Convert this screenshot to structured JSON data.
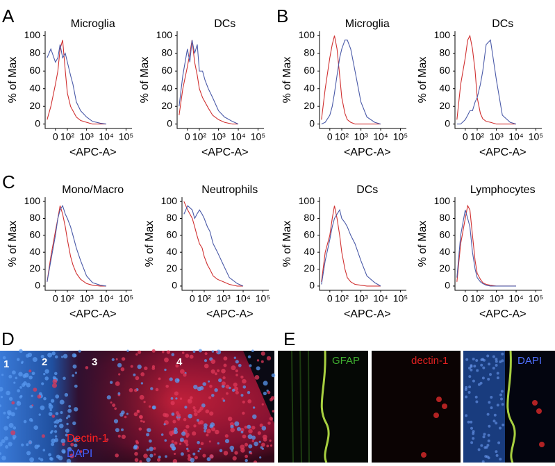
{
  "chart_data": [
    {
      "type": "line",
      "panel": "A",
      "title": "Microglia",
      "xlabel": "<APC-A>",
      "ylabel": "% of Max",
      "xscale": "symlog",
      "x": [
        -60,
        -30,
        0,
        15,
        30,
        50,
        75,
        100,
        150,
        200,
        300,
        500,
        1000,
        2000,
        5000,
        10000
      ],
      "xlim": [
        -80,
        200000
      ],
      "xticks": [
        0,
        {
          "value": 100,
          "label": "10²"
        },
        {
          "value": 1000,
          "label": "10³"
        },
        {
          "value": 10000,
          "label": "10⁴"
        },
        {
          "value": 100000,
          "label": "10⁵"
        }
      ],
      "ylim": [
        -5,
        105
      ],
      "yticks": [
        0,
        20,
        40,
        60,
        80,
        100
      ],
      "series": [
        {
          "color": "#d03030",
          "values": [
            5,
            20,
            45,
            60,
            85,
            95,
            60,
            35,
            20,
            15,
            8,
            4,
            2,
            0,
            0,
            0
          ]
        },
        {
          "color": "#4a5aa8",
          "values": [
            75,
            85,
            70,
            75,
            90,
            75,
            80,
            70,
            55,
            45,
            25,
            15,
            8,
            3,
            1,
            0
          ]
        }
      ]
    },
    {
      "type": "line",
      "title": "DCs",
      "xlabel": "<APC-A>",
      "ylabel": "% of Max",
      "xscale": "symlog",
      "x": [
        -60,
        -30,
        0,
        15,
        30,
        50,
        75,
        100,
        150,
        200,
        300,
        500,
        1000,
        2000,
        5000,
        10000
      ],
      "xlim": [
        -80,
        200000
      ],
      "xticks": [
        0,
        {
          "value": 100,
          "label": "10²"
        },
        {
          "value": 1000,
          "label": "10³"
        },
        {
          "value": 10000,
          "label": "10⁴"
        },
        {
          "value": 100000,
          "label": "10⁵"
        }
      ],
      "ylim": [
        -5,
        105
      ],
      "yticks": [
        0,
        20,
        40,
        60,
        80,
        100
      ],
      "series": [
        {
          "color": "#d03030",
          "values": [
            10,
            40,
            65,
            80,
            95,
            70,
            55,
            40,
            30,
            25,
            18,
            10,
            5,
            2,
            0,
            0
          ]
        },
        {
          "color": "#4a5aa8",
          "values": [
            20,
            55,
            85,
            70,
            95,
            80,
            90,
            60,
            60,
            50,
            40,
            30,
            15,
            8,
            3,
            0
          ]
        }
      ]
    },
    {
      "type": "line",
      "panel": "B",
      "title": "Microglia",
      "xlabel": "<APC-A>",
      "ylabel": "% of Max",
      "xscale": "symlog",
      "x": [
        -60,
        -30,
        0,
        15,
        30,
        50,
        75,
        100,
        150,
        200,
        300,
        500,
        1000,
        2000,
        5000,
        10000
      ],
      "xlim": [
        -80,
        200000
      ],
      "xticks": [
        0,
        {
          "value": 100,
          "label": "10²"
        },
        {
          "value": 1000,
          "label": "10³"
        },
        {
          "value": 10000,
          "label": "10⁴"
        },
        {
          "value": 100000,
          "label": "10⁵"
        }
      ],
      "ylim": [
        -5,
        105
      ],
      "yticks": [
        0,
        20,
        40,
        60,
        80,
        100
      ],
      "series": [
        {
          "color": "#d03030",
          "values": [
            5,
            40,
            75,
            90,
            100,
            85,
            55,
            30,
            12,
            5,
            2,
            0,
            0,
            0,
            0,
            0
          ]
        },
        {
          "color": "#4a5aa8",
          "values": [
            0,
            2,
            10,
            20,
            35,
            55,
            75,
            85,
            95,
            95,
            85,
            60,
            25,
            8,
            2,
            0
          ]
        }
      ]
    },
    {
      "type": "line",
      "title": "DCs",
      "xlabel": "<APC-A>",
      "ylabel": "% of Max",
      "xscale": "symlog",
      "x": [
        -60,
        -30,
        0,
        15,
        30,
        50,
        75,
        100,
        150,
        200,
        300,
        500,
        1000,
        2000,
        5000,
        10000
      ],
      "xlim": [
        -80,
        200000
      ],
      "xticks": [
        0,
        {
          "value": 100,
          "label": "10²"
        },
        {
          "value": 1000,
          "label": "10³"
        },
        {
          "value": 10000,
          "label": "10⁴"
        },
        {
          "value": 100000,
          "label": "10⁵"
        }
      ],
      "ylim": [
        -5,
        105
      ],
      "yticks": [
        0,
        20,
        40,
        60,
        80,
        100
      ],
      "series": [
        {
          "color": "#d03030",
          "values": [
            5,
            45,
            75,
            95,
            100,
            85,
            60,
            30,
            12,
            6,
            3,
            2,
            0,
            0,
            0,
            0
          ]
        },
        {
          "color": "#4a5aa8",
          "values": [
            0,
            0,
            5,
            10,
            15,
            15,
            25,
            30,
            45,
            60,
            90,
            95,
            50,
            10,
            2,
            0
          ]
        }
      ]
    },
    {
      "type": "line",
      "panel": "C",
      "title": "Mono/Macro",
      "xlabel": "<APC-A>",
      "ylabel": "% of Max",
      "xscale": "symlog",
      "x": [
        -60,
        -30,
        0,
        15,
        30,
        50,
        75,
        100,
        150,
        200,
        300,
        500,
        1000,
        2000,
        5000,
        10000
      ],
      "xlim": [
        -80,
        200000
      ],
      "xticks": [
        0,
        {
          "value": 100,
          "label": "10²"
        },
        {
          "value": 1000,
          "label": "10³"
        },
        {
          "value": 10000,
          "label": "10⁴"
        },
        {
          "value": 100000,
          "label": "10⁵"
        }
      ],
      "ylim": [
        -5,
        105
      ],
      "yticks": [
        0,
        20,
        40,
        60,
        80,
        100
      ],
      "series": [
        {
          "color": "#d03030",
          "values": [
            5,
            35,
            65,
            80,
            95,
            85,
            70,
            55,
            35,
            25,
            15,
            8,
            3,
            1,
            0,
            0
          ]
        },
        {
          "color": "#4a5aa8",
          "values": [
            5,
            30,
            60,
            80,
            90,
            95,
            85,
            80,
            70,
            60,
            45,
            30,
            12,
            4,
            1,
            0
          ]
        }
      ]
    },
    {
      "type": "line",
      "title": "Neutrophils",
      "xlabel": "<APC-A>",
      "ylabel": "% of Max",
      "xscale": "symlog",
      "x": [
        -60,
        -30,
        0,
        15,
        30,
        50,
        75,
        100,
        150,
        200,
        300,
        500,
        1000,
        2000,
        5000,
        10000
      ],
      "xlim": [
        -80,
        200000
      ],
      "xticks": [
        0,
        {
          "value": 100,
          "label": "10²"
        },
        {
          "value": 1000,
          "label": "10³"
        },
        {
          "value": 10000,
          "label": "10⁴"
        },
        {
          "value": 100000,
          "label": "10⁵"
        }
      ],
      "ylim": [
        -5,
        105
      ],
      "yticks": [
        0,
        20,
        40,
        60,
        80,
        100
      ],
      "series": [
        {
          "color": "#d03030",
          "values": [
            100,
            90,
            80,
            70,
            60,
            50,
            45,
            35,
            25,
            20,
            12,
            8,
            5,
            2,
            0,
            0
          ]
        },
        {
          "color": "#4a5aa8",
          "values": [
            85,
            95,
            90,
            80,
            85,
            90,
            85,
            80,
            70,
            65,
            50,
            40,
            25,
            10,
            3,
            0
          ]
        }
      ]
    },
    {
      "type": "line",
      "title": "DCs",
      "xlabel": "<APC-A>",
      "ylabel": "% of Max",
      "xscale": "symlog",
      "x": [
        -60,
        -30,
        0,
        15,
        30,
        50,
        75,
        100,
        150,
        200,
        300,
        500,
        1000,
        2000,
        5000,
        10000
      ],
      "xlim": [
        -80,
        200000
      ],
      "xticks": [
        0,
        {
          "value": 100,
          "label": "10²"
        },
        {
          "value": 1000,
          "label": "10³"
        },
        {
          "value": 10000,
          "label": "10⁴"
        },
        {
          "value": 100000,
          "label": "10⁵"
        }
      ],
      "ylim": [
        -5,
        105
      ],
      "yticks": [
        0,
        20,
        40,
        60,
        80,
        100
      ],
      "series": [
        {
          "color": "#d03030",
          "values": [
            5,
            40,
            60,
            80,
            95,
            80,
            60,
            40,
            20,
            10,
            5,
            2,
            1,
            0,
            0,
            0
          ]
        },
        {
          "color": "#4a5aa8",
          "values": [
            2,
            30,
            55,
            70,
            80,
            85,
            90,
            80,
            75,
            70,
            60,
            50,
            30,
            12,
            4,
            0
          ]
        }
      ]
    },
    {
      "type": "line",
      "title": "Lymphocytes",
      "xlabel": "<APC-A>",
      "ylabel": "% of Max",
      "xscale": "symlog",
      "x": [
        -60,
        -30,
        0,
        15,
        30,
        50,
        75,
        100,
        150,
        200,
        300,
        500,
        1000,
        2000,
        5000,
        10000
      ],
      "xlim": [
        -80,
        200000
      ],
      "xticks": [
        0,
        {
          "value": 100,
          "label": "10²"
        },
        {
          "value": 1000,
          "label": "10³"
        },
        {
          "value": 10000,
          "label": "10⁴"
        },
        {
          "value": 100000,
          "label": "10⁵"
        }
      ],
      "ylim": [
        -5,
        105
      ],
      "yticks": [
        0,
        20,
        40,
        60,
        80,
        100
      ],
      "series": [
        {
          "color": "#d03030",
          "values": [
            5,
            50,
            80,
            95,
            90,
            60,
            30,
            15,
            8,
            4,
            2,
            1,
            0,
            0,
            0,
            0
          ]
        },
        {
          "color": "#4a5aa8",
          "values": [
            10,
            60,
            90,
            80,
            70,
            40,
            20,
            10,
            5,
            3,
            1,
            0,
            0,
            0,
            0,
            0
          ]
        }
      ]
    }
  ],
  "images": {
    "D": {
      "panel": "D",
      "regions": [
        "1",
        "2",
        "3",
        "4"
      ],
      "stains": [
        "Dectin-1",
        "DAPI"
      ]
    },
    "E": {
      "panel": "E",
      "channels": [
        "GFAP",
        "dectin-1",
        "DAPI"
      ]
    }
  }
}
